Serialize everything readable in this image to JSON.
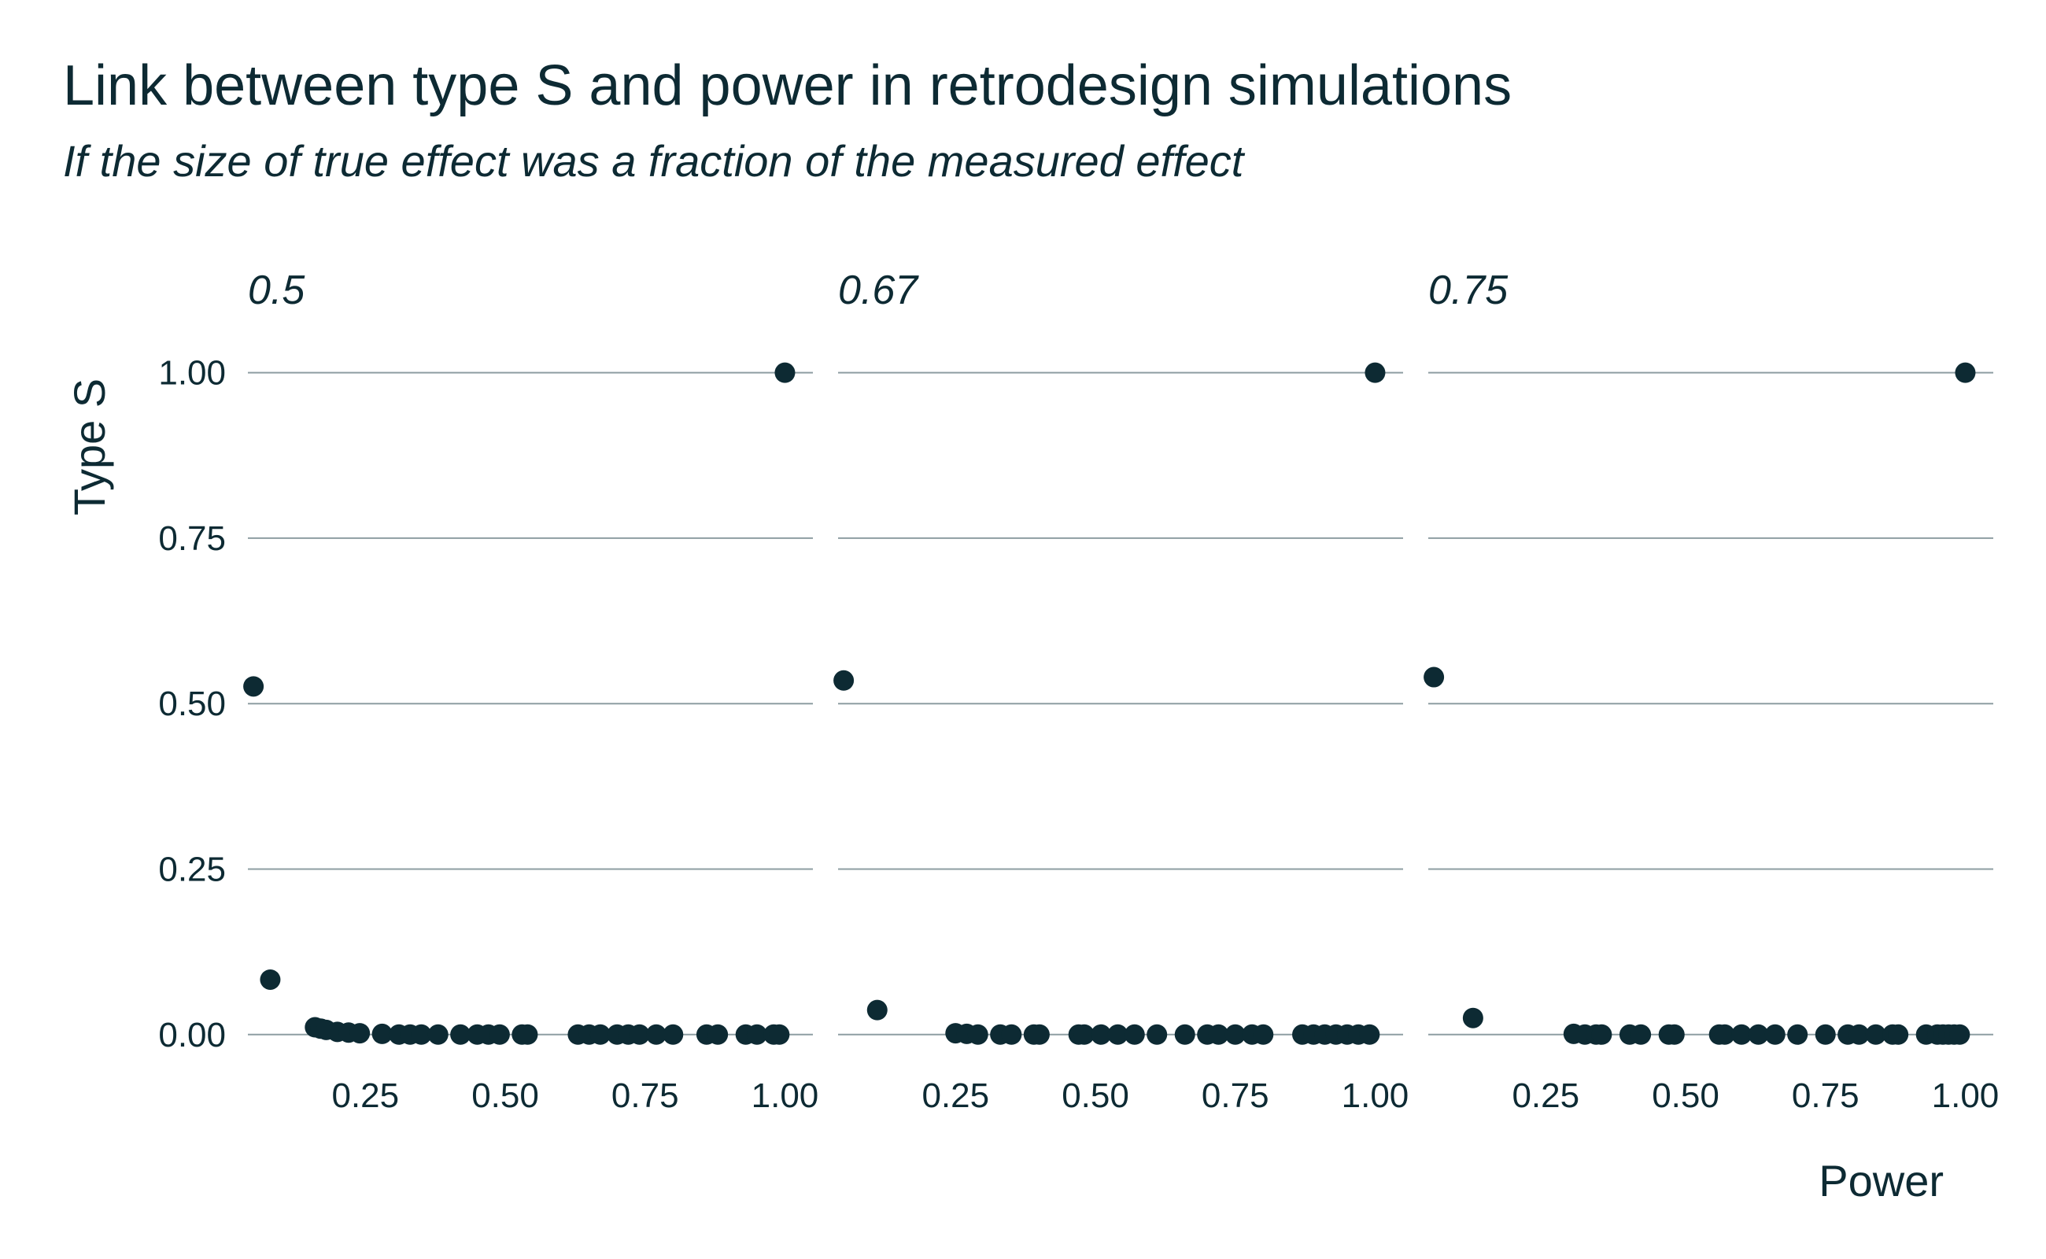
{
  "title": "Link between type S and power in retrodesign simulations",
  "subtitle": "If the size of true effect was a fraction of the measured effect",
  "colors": {
    "ink": "#0d2a33",
    "grid": "#8e9ea2",
    "background": "#ffffff"
  },
  "chart_data": {
    "type": "scatter",
    "title": "Link between type S and power in retrodesign simulations",
    "subtitle": "If the size of true effect was a fraction of the measured effect",
    "xlabel": "Power",
    "ylabel": "Type S",
    "xlim": [
      0.04,
      1.05
    ],
    "ylim": [
      -0.03,
      1.04
    ],
    "x_ticks": [
      "0.25",
      "0.50",
      "0.75",
      "1.00"
    ],
    "y_ticks": [
      "0.00",
      "0.25",
      "0.50",
      "0.75",
      "1.00"
    ],
    "grid": "horizontal",
    "legend": "none",
    "facets": [
      {
        "label": "0.5",
        "points": [
          {
            "x": 0.05,
            "y": 0.526
          },
          {
            "x": 0.08,
            "y": 0.083
          },
          {
            "x": 0.16,
            "y": 0.011
          },
          {
            "x": 0.17,
            "y": 0.009
          },
          {
            "x": 0.18,
            "y": 0.007
          },
          {
            "x": 0.2,
            "y": 0.004
          },
          {
            "x": 0.22,
            "y": 0.003
          },
          {
            "x": 0.24,
            "y": 0.002
          },
          {
            "x": 0.28,
            "y": 0.001
          },
          {
            "x": 0.31,
            "y": 0
          },
          {
            "x": 0.33,
            "y": 0
          },
          {
            "x": 0.35,
            "y": 0
          },
          {
            "x": 0.38,
            "y": 0
          },
          {
            "x": 0.42,
            "y": 0
          },
          {
            "x": 0.45,
            "y": 0
          },
          {
            "x": 0.47,
            "y": 0
          },
          {
            "x": 0.49,
            "y": 0
          },
          {
            "x": 0.53,
            "y": 0
          },
          {
            "x": 0.54,
            "y": 0
          },
          {
            "x": 0.63,
            "y": 0
          },
          {
            "x": 0.65,
            "y": 0
          },
          {
            "x": 0.67,
            "y": 0
          },
          {
            "x": 0.7,
            "y": 0
          },
          {
            "x": 0.72,
            "y": 0
          },
          {
            "x": 0.74,
            "y": 0
          },
          {
            "x": 0.77,
            "y": 0
          },
          {
            "x": 0.8,
            "y": 0
          },
          {
            "x": 0.86,
            "y": 0
          },
          {
            "x": 0.88,
            "y": 0
          },
          {
            "x": 0.93,
            "y": 0
          },
          {
            "x": 0.95,
            "y": 0
          },
          {
            "x": 0.98,
            "y": 0
          },
          {
            "x": 0.99,
            "y": 0
          },
          {
            "x": 1.0,
            "y": 1.0
          }
        ]
      },
      {
        "label": "0.67",
        "points": [
          {
            "x": 0.05,
            "y": 0.535
          },
          {
            "x": 0.11,
            "y": 0.037
          },
          {
            "x": 0.25,
            "y": 0.002
          },
          {
            "x": 0.27,
            "y": 0.001
          },
          {
            "x": 0.29,
            "y": 0
          },
          {
            "x": 0.33,
            "y": 0
          },
          {
            "x": 0.35,
            "y": 0
          },
          {
            "x": 0.39,
            "y": 0
          },
          {
            "x": 0.4,
            "y": 0
          },
          {
            "x": 0.47,
            "y": 0
          },
          {
            "x": 0.48,
            "y": 0
          },
          {
            "x": 0.51,
            "y": 0
          },
          {
            "x": 0.54,
            "y": 0
          },
          {
            "x": 0.57,
            "y": 0
          },
          {
            "x": 0.61,
            "y": 0
          },
          {
            "x": 0.66,
            "y": 0
          },
          {
            "x": 0.7,
            "y": 0
          },
          {
            "x": 0.72,
            "y": 0
          },
          {
            "x": 0.75,
            "y": 0
          },
          {
            "x": 0.78,
            "y": 0
          },
          {
            "x": 0.8,
            "y": 0
          },
          {
            "x": 0.87,
            "y": 0
          },
          {
            "x": 0.89,
            "y": 0
          },
          {
            "x": 0.91,
            "y": 0
          },
          {
            "x": 0.93,
            "y": 0
          },
          {
            "x": 0.95,
            "y": 0
          },
          {
            "x": 0.97,
            "y": 0
          },
          {
            "x": 0.99,
            "y": 0
          },
          {
            "x": 1.0,
            "y": 1.0
          }
        ]
      },
      {
        "label": "0.75",
        "points": [
          {
            "x": 0.05,
            "y": 0.54
          },
          {
            "x": 0.12,
            "y": 0.025
          },
          {
            "x": 0.3,
            "y": 0.001
          },
          {
            "x": 0.32,
            "y": 0
          },
          {
            "x": 0.34,
            "y": 0
          },
          {
            "x": 0.35,
            "y": 0
          },
          {
            "x": 0.4,
            "y": 0
          },
          {
            "x": 0.42,
            "y": 0
          },
          {
            "x": 0.47,
            "y": 0
          },
          {
            "x": 0.48,
            "y": 0
          },
          {
            "x": 0.56,
            "y": 0
          },
          {
            "x": 0.57,
            "y": 0
          },
          {
            "x": 0.6,
            "y": 0
          },
          {
            "x": 0.63,
            "y": 0
          },
          {
            "x": 0.66,
            "y": 0
          },
          {
            "x": 0.7,
            "y": 0
          },
          {
            "x": 0.75,
            "y": 0
          },
          {
            "x": 0.79,
            "y": 0
          },
          {
            "x": 0.81,
            "y": 0
          },
          {
            "x": 0.84,
            "y": 0
          },
          {
            "x": 0.87,
            "y": 0
          },
          {
            "x": 0.88,
            "y": 0
          },
          {
            "x": 0.93,
            "y": 0
          },
          {
            "x": 0.95,
            "y": 0
          },
          {
            "x": 0.96,
            "y": 0
          },
          {
            "x": 0.97,
            "y": 0
          },
          {
            "x": 0.98,
            "y": 0
          },
          {
            "x": 0.99,
            "y": 0
          },
          {
            "x": 1.0,
            "y": 1.0
          }
        ]
      }
    ]
  }
}
